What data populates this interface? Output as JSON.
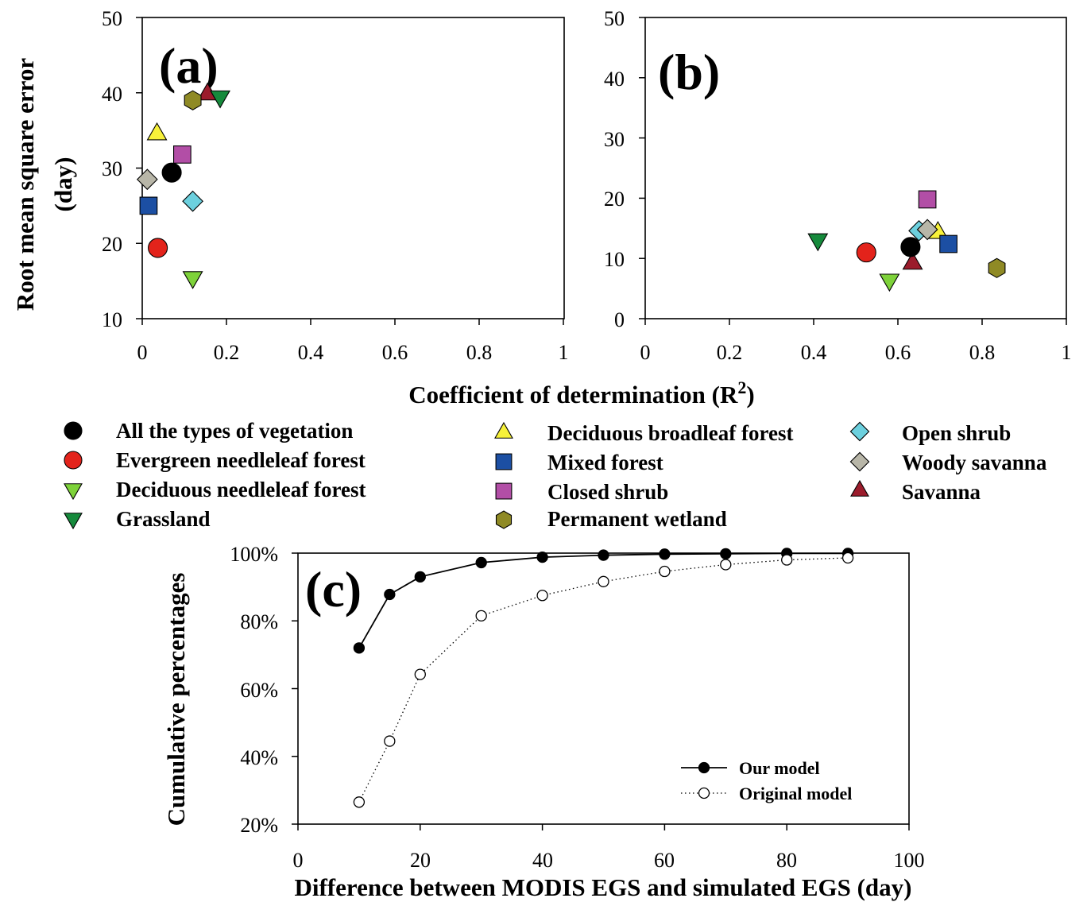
{
  "colors": {
    "all": "#000000",
    "evergreen_needleleaf": "#e3231b",
    "deciduous_needleleaf": "#7ed23a",
    "grassland": "#168a3c",
    "deciduous_broadleaf": "#f7f13a",
    "mixed_forest": "#1c4fa3",
    "closed_shrub": "#b24ea6",
    "permanent_wetland": "#8f8a25",
    "open_shrub": "#6cd0de",
    "woody_savanna": "#b8b6a8",
    "savanna": "#9b1c2c"
  },
  "figure": {
    "xlabel_prefix": "Coefficient of determination (R",
    "xlabel_sup": "2",
    "xlabel_suffix": ")"
  },
  "legend": [
    {
      "key": "all",
      "label": "All the types of vegetation",
      "marker": "circle"
    },
    {
      "key": "evergreen_needleleaf",
      "label": "Evergreen needleleaf forest",
      "marker": "circle"
    },
    {
      "key": "deciduous_needleleaf",
      "label": "Deciduous needleleaf forest",
      "marker": "triangle-down"
    },
    {
      "key": "grassland",
      "label": "Grassland",
      "marker": "triangle-down"
    },
    {
      "key": "deciduous_broadleaf",
      "label": "Deciduous broadleaf forest",
      "marker": "triangle-up"
    },
    {
      "key": "mixed_forest",
      "label": "Mixed forest",
      "marker": "square"
    },
    {
      "key": "closed_shrub",
      "label": "Closed shrub",
      "marker": "square"
    },
    {
      "key": "permanent_wetland",
      "label": "Permanent wetland",
      "marker": "hexagon"
    },
    {
      "key": "open_shrub",
      "label": "Open shrub",
      "marker": "diamond"
    },
    {
      "key": "woody_savanna",
      "label": "Woody savanna",
      "marker": "diamond"
    },
    {
      "key": "savanna",
      "label": "Savanna",
      "marker": "triangle-up"
    }
  ],
  "chart_data": [
    {
      "type": "scatter",
      "panel_label": "(a)",
      "ylabel_line1": "Root mean square error",
      "ylabel_line2": "(day)",
      "xlim": [
        0,
        1
      ],
      "ylim": [
        10,
        50
      ],
      "xticks": [
        0,
        0.2,
        0.4,
        0.6,
        0.8,
        1
      ],
      "xtick_labels": [
        "0",
        "0.2",
        "0.4",
        "0.6",
        "0.8",
        "1"
      ],
      "yticks": [
        10,
        20,
        30,
        40,
        50
      ],
      "ytick_labels": [
        "10",
        "20",
        "30",
        "40",
        "50"
      ],
      "grid": false,
      "points": [
        {
          "series": "savanna",
          "x": 0.155,
          "y": 40.0
        },
        {
          "series": "grassland",
          "x": 0.185,
          "y": 39.3
        },
        {
          "series": "permanent_wetland",
          "x": 0.12,
          "y": 39.0
        },
        {
          "series": "deciduous_broadleaf",
          "x": 0.035,
          "y": 34.7
        },
        {
          "series": "closed_shrub",
          "x": 0.095,
          "y": 31.8
        },
        {
          "series": "all",
          "x": 0.07,
          "y": 29.4
        },
        {
          "series": "woody_savanna",
          "x": 0.012,
          "y": 28.5
        },
        {
          "series": "open_shrub",
          "x": 0.12,
          "y": 25.6
        },
        {
          "series": "mixed_forest",
          "x": 0.015,
          "y": 25.0
        },
        {
          "series": "evergreen_needleleaf",
          "x": 0.037,
          "y": 19.4
        },
        {
          "series": "deciduous_needleleaf",
          "x": 0.12,
          "y": 15.3
        }
      ]
    },
    {
      "type": "scatter",
      "panel_label": "(b)",
      "xlim": [
        0,
        1
      ],
      "ylim": [
        0,
        50
      ],
      "xticks": [
        0,
        0.2,
        0.4,
        0.6,
        0.8,
        1
      ],
      "xtick_labels": [
        "0",
        "0.2",
        "0.4",
        "0.6",
        "0.8",
        "1"
      ],
      "yticks": [
        0,
        10,
        20,
        30,
        40,
        50
      ],
      "ytick_labels": [
        "0",
        "10",
        "20",
        "30",
        "40",
        "50"
      ],
      "grid": false,
      "points": [
        {
          "series": "grassland",
          "x": 0.41,
          "y": 12.9
        },
        {
          "series": "evergreen_needleleaf",
          "x": 0.525,
          "y": 11.0
        },
        {
          "series": "deciduous_needleleaf",
          "x": 0.58,
          "y": 6.2
        },
        {
          "series": "savanna",
          "x": 0.635,
          "y": 9.4
        },
        {
          "series": "all",
          "x": 0.63,
          "y": 11.9
        },
        {
          "series": "deciduous_broadleaf",
          "x": 0.695,
          "y": 14.5
        },
        {
          "series": "open_shrub",
          "x": 0.65,
          "y": 14.6
        },
        {
          "series": "closed_shrub",
          "x": 0.67,
          "y": 19.8
        },
        {
          "series": "woody_savanna",
          "x": 0.67,
          "y": 14.8
        },
        {
          "series": "mixed_forest",
          "x": 0.72,
          "y": 12.4
        },
        {
          "series": "permanent_wetland",
          "x": 0.835,
          "y": 8.4
        }
      ]
    },
    {
      "type": "line",
      "panel_label": "(c)",
      "xlabel": "Difference between MODIS EGS and  simulated EGS (day)",
      "ylabel": "Cumulative percentages",
      "xlim": [
        0,
        100
      ],
      "ylim": [
        20,
        100
      ],
      "xticks": [
        0,
        20,
        40,
        60,
        80,
        100
      ],
      "xtick_labels": [
        "0",
        "20",
        "40",
        "60",
        "80",
        "100"
      ],
      "yticks": [
        20,
        40,
        60,
        80,
        100
      ],
      "ytick_labels": [
        "20%",
        "40%",
        "60%",
        "80%",
        "100%"
      ],
      "grid": false,
      "legend_position": "bottom-right",
      "x": [
        10,
        15,
        20,
        30,
        40,
        50,
        60,
        70,
        80,
        90
      ],
      "series": [
        {
          "name": "Our model",
          "style": "solid-filled",
          "values": [
            72.0,
            87.8,
            93.0,
            97.2,
            98.8,
            99.4,
            99.7,
            99.8,
            99.9,
            99.9
          ]
        },
        {
          "name": "Original model",
          "style": "dotted-open",
          "values": [
            26.5,
            44.5,
            64.2,
            81.5,
            87.5,
            91.6,
            94.6,
            96.6,
            98.0,
            98.6
          ]
        }
      ]
    }
  ]
}
